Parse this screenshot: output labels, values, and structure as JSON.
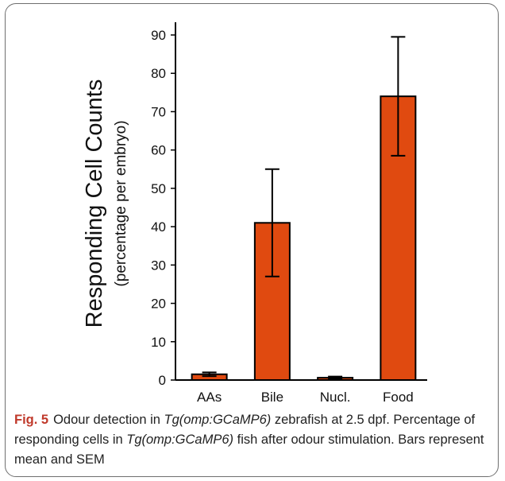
{
  "chart_data": {
    "type": "bar",
    "categories": [
      "AAs",
      "Bile",
      "Nucl.",
      "Food"
    ],
    "values": [
      1.5,
      41,
      0.6,
      74
    ],
    "errors": [
      0.5,
      14,
      0.3,
      15.5
    ],
    "ylabel": "Responding Cell Counts",
    "ylabel_sub": "(percentage per embryo)",
    "ylim": [
      0,
      90
    ],
    "yticks": [
      0,
      10,
      20,
      30,
      40,
      50,
      60,
      70,
      80,
      90
    ],
    "bar_color": "#e04a10",
    "legend": "none",
    "grid": false
  },
  "caption": {
    "fig_label": "Fig. 5",
    "part1": "Odour detection in ",
    "italic1": "Tg(omp:GCaMP6)",
    "part2": " zebrafish at 2.5 dpf. Percentage of responding cells in ",
    "italic2": "Tg(omp:GCaMP6)",
    "part3": " fish after odour stimulation. Bars represent mean and SEM"
  }
}
